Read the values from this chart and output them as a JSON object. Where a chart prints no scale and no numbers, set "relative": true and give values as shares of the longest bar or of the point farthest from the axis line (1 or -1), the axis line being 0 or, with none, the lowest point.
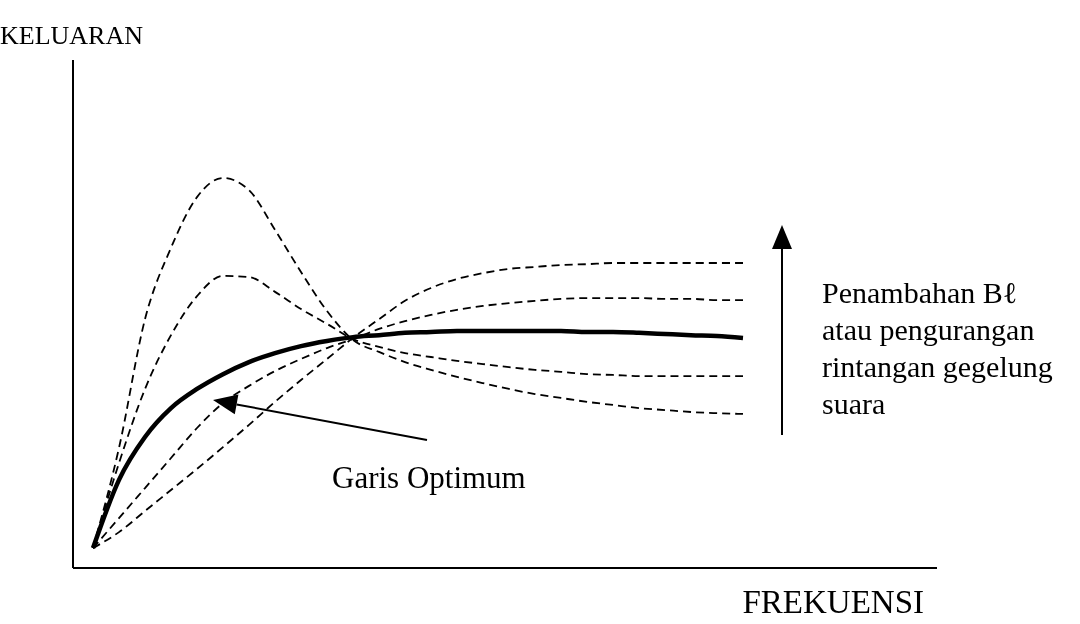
{
  "chart_data": {
    "type": "line",
    "relative": true,
    "xlabel": "FREKUENSI",
    "ylabel": "KELUARAN",
    "annotations": [
      "Garis Optimum",
      "Penambahan Bℓ\natau pengurangan\nrintangan gegelung\nsuara"
    ],
    "categories": [
      null,
      null,
      null,
      null,
      null,
      null,
      null,
      null,
      null,
      null,
      null,
      null,
      null,
      null,
      null,
      null,
      null,
      null,
      null,
      null,
      null,
      null,
      null,
      null,
      null,
      null
    ],
    "series": [
      {
        "color": "#000000",
        "line_style": "dashed",
        "values": [
          0.051,
          0.308,
          0.638,
          0.821,
          0.951,
          1.0,
          0.969,
          0.867,
          0.759,
          0.659,
          0.585,
          0.554,
          0.528,
          0.508,
          0.49,
          0.474,
          0.459,
          0.446,
          0.436,
          0.426,
          0.418,
          0.41,
          0.405,
          0.4,
          0.397,
          0.395
        ]
      },
      {
        "color": "#000000",
        "line_style": "dashed",
        "values": [
          0.051,
          0.269,
          0.459,
          0.597,
          0.697,
          0.749,
          0.746,
          0.708,
          0.664,
          0.626,
          0.587,
          0.567,
          0.551,
          0.541,
          0.531,
          0.523,
          0.515,
          0.508,
          0.503,
          0.497,
          0.495,
          0.492,
          0.492,
          0.492,
          0.492,
          0.492
        ]
      },
      {
        "color": "#000000",
        "line_style": "solid",
        "values": [
          0.051,
          0.226,
          0.336,
          0.41,
          0.459,
          0.497,
          0.528,
          0.551,
          0.569,
          0.582,
          0.592,
          0.597,
          0.603,
          0.605,
          0.608,
          0.608,
          0.608,
          0.608,
          0.608,
          0.605,
          0.605,
          0.603,
          0.6,
          0.597,
          0.595,
          0.59
        ]
      },
      {
        "color": "#000000",
        "line_style": "dashed",
        "values": [
          0.051,
          0.128,
          0.205,
          0.282,
          0.359,
          0.423,
          0.467,
          0.505,
          0.536,
          0.564,
          0.587,
          0.613,
          0.633,
          0.649,
          0.662,
          0.672,
          0.679,
          0.685,
          0.69,
          0.692,
          0.692,
          0.692,
          0.69,
          0.69,
          0.687,
          0.687
        ]
      },
      {
        "color": "#000000",
        "line_style": "dashed",
        "values": [
          0.051,
          0.092,
          0.146,
          0.2,
          0.254,
          0.31,
          0.367,
          0.426,
          0.482,
          0.536,
          0.59,
          0.638,
          0.685,
          0.718,
          0.741,
          0.756,
          0.767,
          0.772,
          0.777,
          0.779,
          0.782,
          0.782,
          0.782,
          0.782,
          0.782,
          0.782
        ]
      }
    ]
  }
}
